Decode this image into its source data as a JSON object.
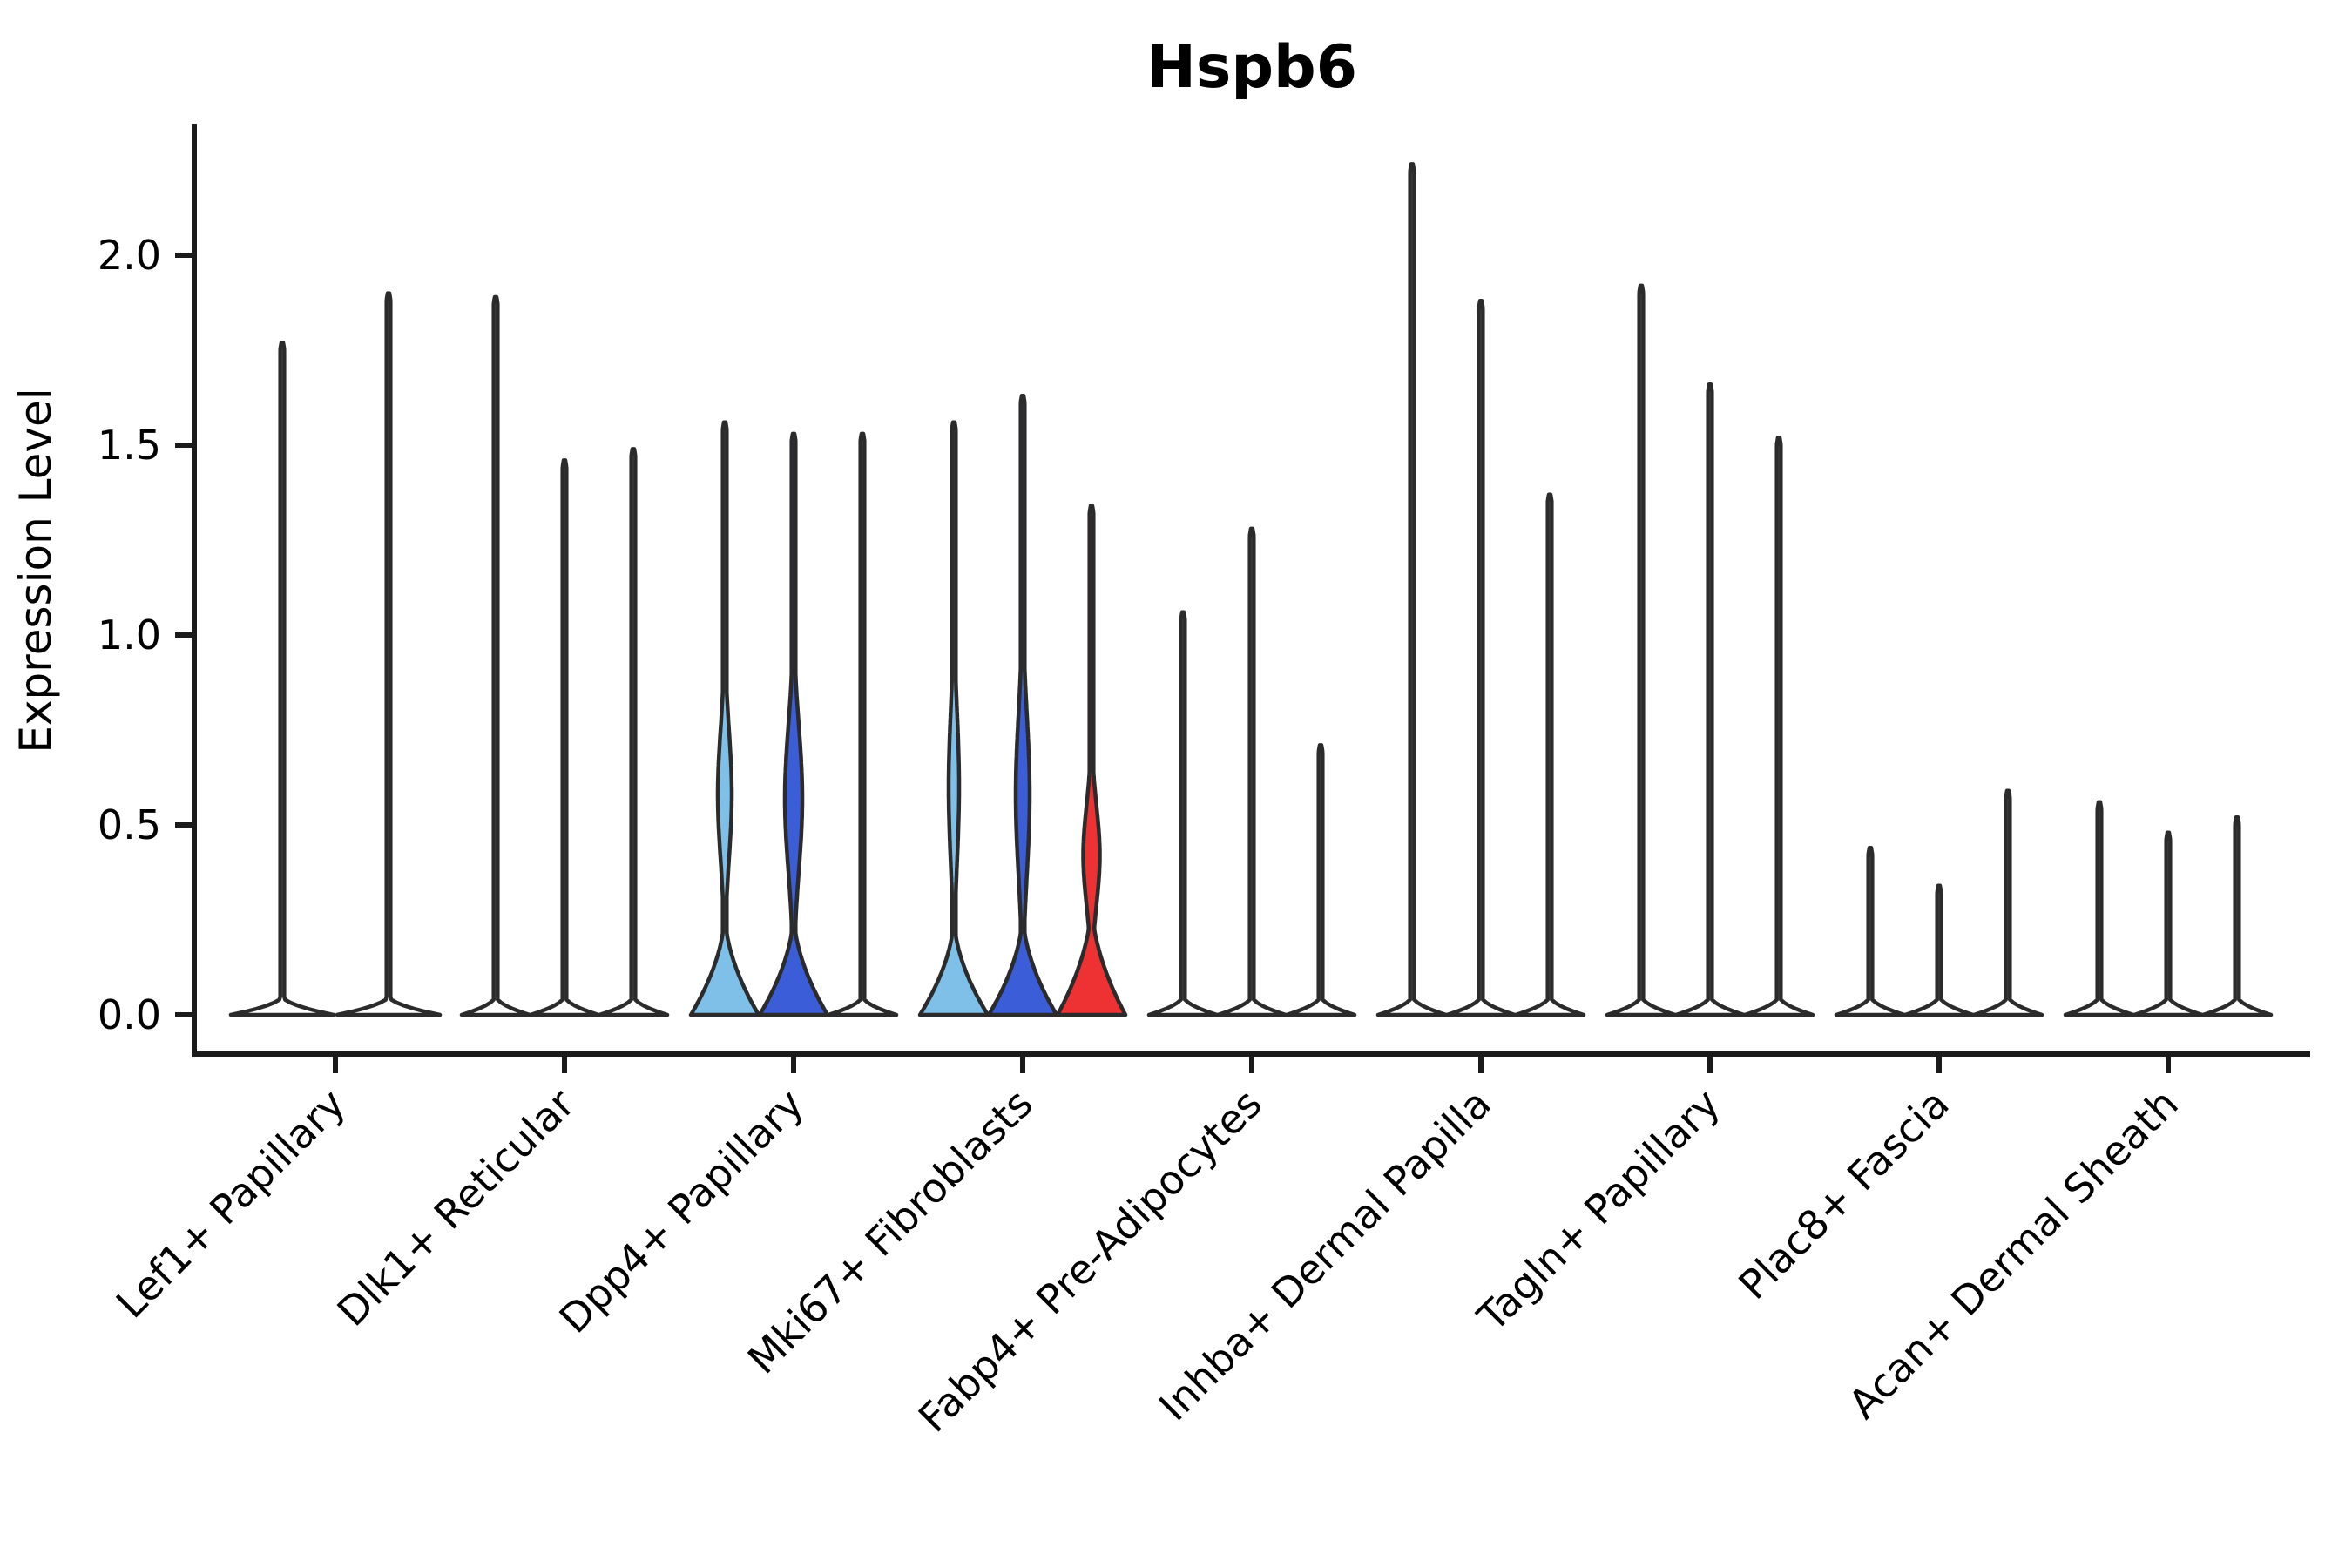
{
  "chart_data": {
    "type": "violin",
    "title": "Hspb6",
    "ylabel": "Expression Level",
    "xlabel": "",
    "grid": false,
    "legend": "none",
    "ylim": [
      -0.1,
      2.35
    ],
    "yticks": [
      0.0,
      0.5,
      1.0,
      1.5,
      2.0
    ],
    "ytick_labels": [
      "0.0",
      "0.5",
      "1.0",
      "1.5",
      "2.0"
    ],
    "categories": [
      "Lef1+ Papillary",
      "Dlk1+ Reticular",
      "Dpp4+ Papillary",
      "Mki67+ Fibroblasts",
      "Fabp4+ Pre-Adipocytes",
      "Inhba+ Dermal Papilla",
      "Tagln+ Papillary",
      "Plac8+ Fascia",
      "Acan+ Dermal Sheath"
    ],
    "colors": {
      "plain": "#FFFFFF",
      "lightblue": "#7EC0E8",
      "blue": "#3B5DD8",
      "red": "#EE3132",
      "outline": "#2B2B2B",
      "axis": "#1B1B1B"
    },
    "groups": [
      {
        "category": "Lef1+ Papillary",
        "violins": [
          {
            "max": 1.77,
            "fill": "plain",
            "base_peak": 0.05,
            "bulge": null
          },
          {
            "max": 1.9,
            "fill": "plain",
            "base_peak": 0.05,
            "bulge": null
          }
        ]
      },
      {
        "category": "Dlk1+ Reticular",
        "violins": [
          {
            "max": 1.89,
            "fill": "plain",
            "base_peak": 0.05,
            "bulge": null
          },
          {
            "max": 1.46,
            "fill": "plain",
            "base_peak": 0.05,
            "bulge": null
          },
          {
            "max": 1.49,
            "fill": "plain",
            "base_peak": 0.05,
            "bulge": null
          }
        ]
      },
      {
        "category": "Dpp4+ Papillary",
        "violins": [
          {
            "max": 1.56,
            "fill": "lightblue",
            "base_peak": 0.27,
            "bulge": {
              "center": 0.58,
              "halfwidth": 8,
              "sigma": 0.17
            }
          },
          {
            "max": 1.53,
            "fill": "blue",
            "base_peak": 0.27,
            "bulge": {
              "center": 0.57,
              "halfwidth": 10,
              "sigma": 0.19
            }
          },
          {
            "max": 1.53,
            "fill": "plain",
            "base_peak": 0.05,
            "bulge": null
          }
        ]
      },
      {
        "category": "Mki67+ Fibroblasts",
        "violins": [
          {
            "max": 1.56,
            "fill": "lightblue",
            "base_peak": 0.26,
            "bulge": {
              "center": 0.6,
              "halfwidth": 6,
              "sigma": 0.2
            }
          },
          {
            "max": 1.63,
            "fill": "blue",
            "base_peak": 0.27,
            "bulge": {
              "center": 0.58,
              "halfwidth": 8,
              "sigma": 0.21
            }
          },
          {
            "max": 1.34,
            "fill": "red",
            "base_peak": 0.3,
            "bulge": {
              "center": 0.42,
              "halfwidth": 9.5,
              "sigma": 0.13
            }
          }
        ]
      },
      {
        "category": "Fabp4+ Pre-Adipocytes",
        "violins": [
          {
            "max": 1.06,
            "fill": "plain",
            "base_peak": 0.05,
            "bulge": null
          },
          {
            "max": 1.28,
            "fill": "plain",
            "base_peak": 0.05,
            "bulge": null
          },
          {
            "max": 0.71,
            "fill": "plain",
            "base_peak": 0.05,
            "bulge": null
          }
        ]
      },
      {
        "category": "Inhba+ Dermal Papilla",
        "violins": [
          {
            "max": 2.24,
            "fill": "plain",
            "base_peak": 0.05,
            "bulge": null
          },
          {
            "max": 1.88,
            "fill": "plain",
            "base_peak": 0.05,
            "bulge": null
          },
          {
            "max": 1.37,
            "fill": "plain",
            "base_peak": 0.05,
            "bulge": null
          }
        ]
      },
      {
        "category": "Tagln+ Papillary",
        "violins": [
          {
            "max": 1.92,
            "fill": "plain",
            "base_peak": 0.05,
            "bulge": null
          },
          {
            "max": 1.66,
            "fill": "plain",
            "base_peak": 0.05,
            "bulge": null
          },
          {
            "max": 1.52,
            "fill": "plain",
            "base_peak": 0.05,
            "bulge": null
          }
        ]
      },
      {
        "category": "Plac8+ Fascia",
        "violins": [
          {
            "max": 0.44,
            "fill": "plain",
            "base_peak": 0.05,
            "bulge": null
          },
          {
            "max": 0.34,
            "fill": "plain",
            "base_peak": 0.05,
            "bulge": null
          },
          {
            "max": 0.59,
            "fill": "plain",
            "base_peak": 0.05,
            "bulge": null
          }
        ]
      },
      {
        "category": "Acan+ Dermal Sheath",
        "violins": [
          {
            "max": 0.56,
            "fill": "plain",
            "base_peak": 0.05,
            "bulge": null
          },
          {
            "max": 0.48,
            "fill": "plain",
            "base_peak": 0.05,
            "bulge": null
          },
          {
            "max": 0.52,
            "fill": "plain",
            "base_peak": 0.05,
            "bulge": null
          }
        ]
      }
    ]
  }
}
